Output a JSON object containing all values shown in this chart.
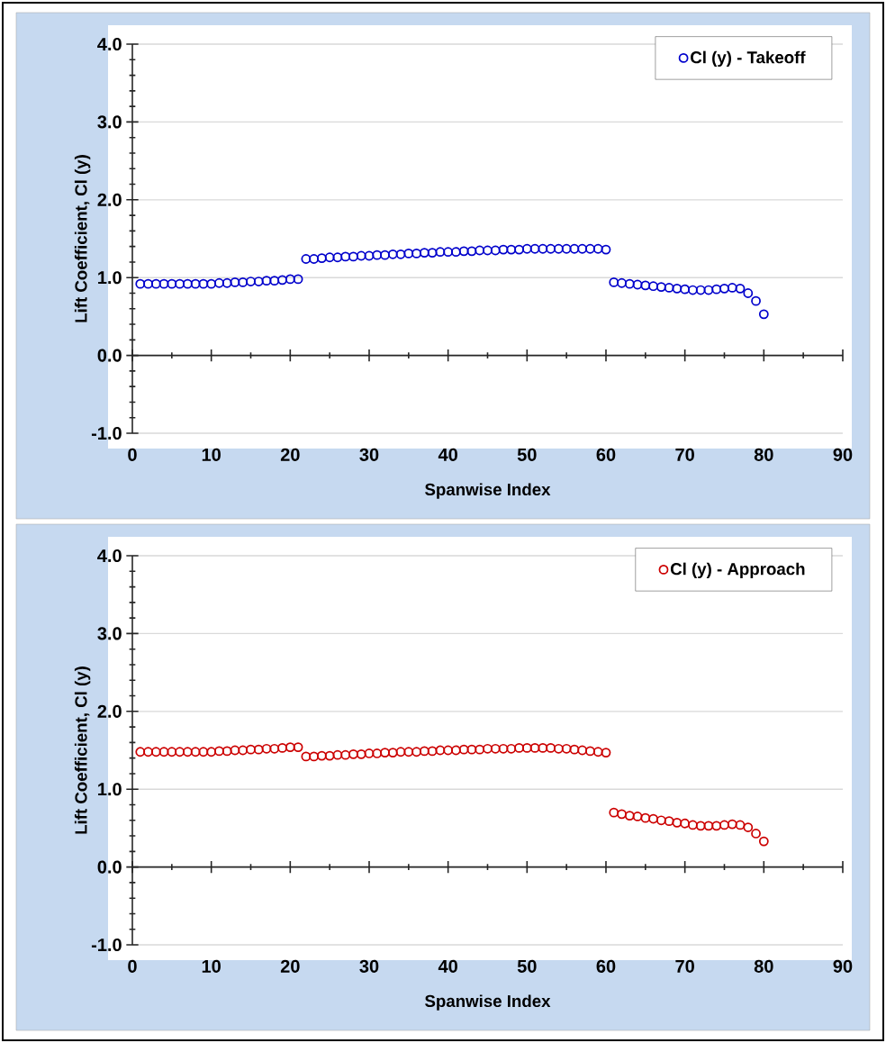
{
  "chart_data": [
    {
      "type": "scatter",
      "xlabel": "Spanwise Index",
      "ylabel": "Lift Coefficient, Cl (y)",
      "x": [
        1,
        2,
        3,
        4,
        5,
        6,
        7,
        8,
        9,
        10,
        11,
        12,
        13,
        14,
        15,
        16,
        17,
        18,
        19,
        20,
        21,
        22,
        23,
        24,
        25,
        26,
        27,
        28,
        29,
        30,
        31,
        32,
        33,
        34,
        35,
        36,
        37,
        38,
        39,
        40,
        41,
        42,
        43,
        44,
        45,
        46,
        47,
        48,
        49,
        50,
        51,
        52,
        53,
        54,
        55,
        56,
        57,
        58,
        59,
        60,
        61,
        62,
        63,
        64,
        65,
        66,
        67,
        68,
        69,
        70,
        71,
        72,
        73,
        74,
        75,
        76,
        77,
        78,
        79,
        80
      ],
      "series": [
        {
          "name": "Cl (y) - Takeoff",
          "color": "#0000cc",
          "values": [
            0.92,
            0.92,
            0.92,
            0.92,
            0.92,
            0.92,
            0.92,
            0.92,
            0.92,
            0.92,
            0.93,
            0.93,
            0.94,
            0.94,
            0.95,
            0.95,
            0.96,
            0.96,
            0.97,
            0.98,
            0.98,
            1.24,
            1.24,
            1.25,
            1.26,
            1.26,
            1.27,
            1.27,
            1.28,
            1.28,
            1.29,
            1.29,
            1.3,
            1.3,
            1.31,
            1.31,
            1.32,
            1.32,
            1.33,
            1.33,
            1.33,
            1.34,
            1.34,
            1.35,
            1.35,
            1.35,
            1.36,
            1.36,
            1.36,
            1.37,
            1.37,
            1.37,
            1.37,
            1.37,
            1.37,
            1.37,
            1.37,
            1.37,
            1.37,
            1.36,
            0.94,
            0.93,
            0.92,
            0.91,
            0.9,
            0.89,
            0.88,
            0.87,
            0.86,
            0.85,
            0.84,
            0.84,
            0.84,
            0.85,
            0.86,
            0.87,
            0.86,
            0.8,
            0.7,
            0.53
          ]
        }
      ],
      "xlim": [
        0,
        90
      ],
      "ylim": [
        -1,
        4
      ],
      "xticks": [
        0,
        10,
        20,
        30,
        40,
        50,
        60,
        70,
        80,
        90
      ],
      "yticks": [
        {
          "value": -1,
          "label": "-1.0"
        },
        {
          "value": 0,
          "label": "0.0"
        },
        {
          "value": 1,
          "label": "1.0"
        },
        {
          "value": 2,
          "label": "2.0"
        },
        {
          "value": 3,
          "label": "3.0"
        },
        {
          "value": 4,
          "label": "4.0"
        }
      ],
      "grid": "y",
      "legend": "top right",
      "marker": "circle"
    },
    {
      "type": "scatter",
      "xlabel": "Spanwise Index",
      "ylabel": "Lift Coefficient, Cl (y)",
      "x": [
        1,
        2,
        3,
        4,
        5,
        6,
        7,
        8,
        9,
        10,
        11,
        12,
        13,
        14,
        15,
        16,
        17,
        18,
        19,
        20,
        21,
        22,
        23,
        24,
        25,
        26,
        27,
        28,
        29,
        30,
        31,
        32,
        33,
        34,
        35,
        36,
        37,
        38,
        39,
        40,
        41,
        42,
        43,
        44,
        45,
        46,
        47,
        48,
        49,
        50,
        51,
        52,
        53,
        54,
        55,
        56,
        57,
        58,
        59,
        60,
        61,
        62,
        63,
        64,
        65,
        66,
        67,
        68,
        69,
        70,
        71,
        72,
        73,
        74,
        75,
        76,
        77,
        78,
        79,
        80
      ],
      "series": [
        {
          "name": "Cl (y) - Approach",
          "color": "#cc0000",
          "values": [
            1.48,
            1.48,
            1.48,
            1.48,
            1.48,
            1.48,
            1.48,
            1.48,
            1.48,
            1.48,
            1.49,
            1.49,
            1.5,
            1.5,
            1.51,
            1.51,
            1.52,
            1.52,
            1.53,
            1.54,
            1.54,
            1.42,
            1.42,
            1.43,
            1.43,
            1.44,
            1.44,
            1.45,
            1.45,
            1.46,
            1.46,
            1.47,
            1.47,
            1.48,
            1.48,
            1.48,
            1.49,
            1.49,
            1.5,
            1.5,
            1.5,
            1.51,
            1.51,
            1.51,
            1.52,
            1.52,
            1.52,
            1.52,
            1.53,
            1.53,
            1.53,
            1.53,
            1.53,
            1.52,
            1.52,
            1.51,
            1.5,
            1.49,
            1.48,
            1.47,
            0.7,
            0.68,
            0.66,
            0.65,
            0.63,
            0.62,
            0.6,
            0.59,
            0.57,
            0.56,
            0.54,
            0.53,
            0.53,
            0.53,
            0.54,
            0.55,
            0.54,
            0.51,
            0.43,
            0.33
          ]
        }
      ],
      "xlim": [
        0,
        90
      ],
      "ylim": [
        -1,
        4
      ],
      "xticks": [
        0,
        10,
        20,
        30,
        40,
        50,
        60,
        70,
        80,
        90
      ],
      "yticks": [
        {
          "value": -1,
          "label": "-1.0"
        },
        {
          "value": 0,
          "label": "0.0"
        },
        {
          "value": 1,
          "label": "1.0"
        },
        {
          "value": 2,
          "label": "2.0"
        },
        {
          "value": 3,
          "label": "3.0"
        },
        {
          "value": 4,
          "label": "4.0"
        }
      ],
      "grid": "y",
      "legend": "top right",
      "marker": "circle"
    }
  ]
}
